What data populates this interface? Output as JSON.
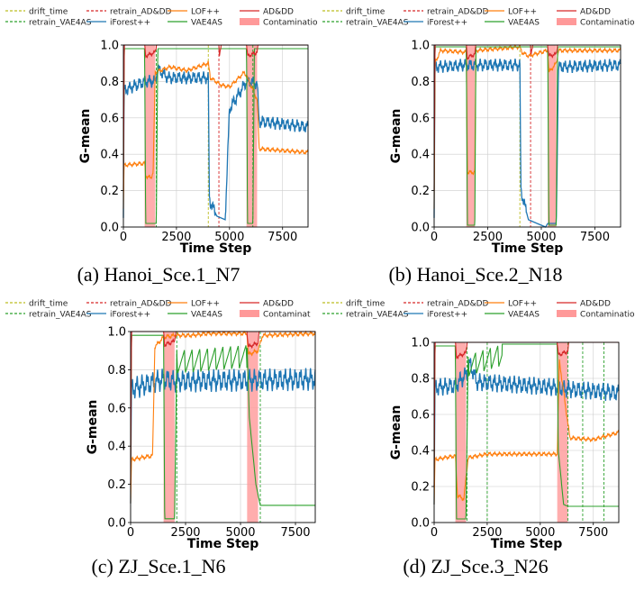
{
  "legend_entries": [
    {
      "label": "drift_time",
      "color": "#bcbd22",
      "style": "dash"
    },
    {
      "label": "retrain_VAE4AS",
      "color": "#2ca02c",
      "style": "dash"
    },
    {
      "label": "retrain_AD&DD",
      "color": "#d62728",
      "style": "dash"
    },
    {
      "label": "iForest++",
      "color": "#1f77b4",
      "style": "line"
    },
    {
      "label": "LOF++",
      "color": "#ff7f0e",
      "style": "line"
    },
    {
      "label": "VAE4AS",
      "color": "#2ca02c",
      "style": "line"
    },
    {
      "label": "AD&DD",
      "color": "#d62728",
      "style": "line"
    },
    {
      "label": "Contamination",
      "color": "#ff9999",
      "style": "patch"
    }
  ],
  "colors": {
    "ad_dd": "#d62728",
    "vae4as": "#2ca02c",
    "lof": "#ff7f0e",
    "iforest": "#1f77b4",
    "drift": "#bcbd22",
    "contamination": "#ff9999"
  },
  "chart_data": [
    {
      "type": "line",
      "caption": "(a) Hanoi_Sce.1_N7",
      "legend_contamination_label": "Contamination",
      "xlabel": "Time Step",
      "ylabel": "G-mean",
      "xlim": [
        0,
        8700
      ],
      "ylim": [
        0,
        1.0
      ],
      "xticks": [
        0,
        2500,
        5000,
        7500
      ],
      "yticks": [
        0.0,
        0.2,
        0.4,
        0.6,
        0.8,
        1.0
      ],
      "contamination": [
        [
          1000,
          1500
        ],
        [
          5800,
          6300
        ]
      ],
      "drift_time": [
        4000
      ],
      "retrain_VAE4AS": [
        1550,
        6100
      ],
      "retrain_AD&DD": [
        4500
      ],
      "series": [
        {
          "name": "AD&DD",
          "points": [
            [
              0,
              0.2
            ],
            [
              40,
              1.0
            ],
            [
              1000,
              1.0
            ],
            [
              1050,
              0.94
            ],
            [
              1500,
              0.96
            ],
            [
              1560,
              1.0
            ],
            [
              4500,
              1.0
            ],
            [
              4520,
              0.94
            ],
            [
              4600,
              1.0
            ],
            [
              5800,
              1.0
            ],
            [
              5850,
              0.94
            ],
            [
              6300,
              0.96
            ],
            [
              6350,
              1.0
            ],
            [
              8700,
              1.0
            ]
          ],
          "wavy": true
        },
        {
          "name": "VAE4AS",
          "points": [
            [
              0,
              0.2
            ],
            [
              40,
              0.98
            ],
            [
              1000,
              0.98
            ],
            [
              1050,
              0.02
            ],
            [
              1550,
              0.02
            ],
            [
              1620,
              0.98
            ],
            [
              5800,
              0.98
            ],
            [
              5850,
              0.02
            ],
            [
              6100,
              0.02
            ],
            [
              6170,
              0.98
            ],
            [
              8700,
              0.98
            ]
          ],
          "wavy": false
        },
        {
          "name": "LOF++",
          "points": [
            [
              0,
              0.1
            ],
            [
              30,
              0.34
            ],
            [
              1000,
              0.35
            ],
            [
              1050,
              0.28
            ],
            [
              1300,
              0.27
            ],
            [
              1400,
              0.3
            ],
            [
              1500,
              0.85
            ],
            [
              2200,
              0.88
            ],
            [
              3000,
              0.86
            ],
            [
              4000,
              0.9
            ],
            [
              4100,
              0.82
            ],
            [
              4600,
              0.78
            ],
            [
              5000,
              0.77
            ],
            [
              5700,
              0.85
            ],
            [
              5800,
              0.83
            ],
            [
              6300,
              0.7
            ],
            [
              6400,
              0.43
            ],
            [
              8700,
              0.41
            ]
          ],
          "wavy": true
        },
        {
          "name": "iForest++",
          "points": [
            [
              0,
              0.05
            ],
            [
              30,
              0.75
            ],
            [
              1000,
              0.8
            ],
            [
              1500,
              0.8
            ],
            [
              1600,
              0.87
            ],
            [
              2100,
              0.82
            ],
            [
              4000,
              0.82
            ],
            [
              4050,
              0.15
            ],
            [
              4400,
              0.06
            ],
            [
              4800,
              0.04
            ],
            [
              4850,
              0.2
            ],
            [
              5000,
              0.65
            ],
            [
              5800,
              0.8
            ],
            [
              6300,
              0.79
            ],
            [
              6400,
              0.58
            ],
            [
              8700,
              0.55
            ]
          ],
          "wavy": true
        }
      ]
    },
    {
      "type": "line",
      "caption": "(b) Hanoi_Sce.2_N18",
      "legend_contamination_label": "Contamination",
      "xlabel": "Time Step",
      "ylabel": "G-mean",
      "xlim": [
        0,
        8700
      ],
      "ylim": [
        0,
        1.0
      ],
      "xticks": [
        0,
        2500,
        5000,
        7500
      ],
      "yticks": [
        0.0,
        0.2,
        0.4,
        0.6,
        0.8,
        1.0
      ],
      "contamination": [
        [
          1500,
          1900
        ],
        [
          5300,
          5700
        ]
      ],
      "drift_time": [
        4000
      ],
      "retrain_VAE4AS": [],
      "retrain_AD&DD": [
        4500
      ],
      "series": [
        {
          "name": "AD&DD",
          "points": [
            [
              0,
              0.2
            ],
            [
              40,
              1.0
            ],
            [
              1500,
              1.0
            ],
            [
              1550,
              0.93
            ],
            [
              1900,
              0.95
            ],
            [
              1950,
              1.0
            ],
            [
              4500,
              1.0
            ],
            [
              4520,
              0.95
            ],
            [
              4600,
              1.0
            ],
            [
              5300,
              1.0
            ],
            [
              5350,
              0.94
            ],
            [
              5700,
              0.95
            ],
            [
              5750,
              1.0
            ],
            [
              8700,
              1.0
            ]
          ],
          "wavy": true
        },
        {
          "name": "VAE4AS",
          "points": [
            [
              0,
              0.2
            ],
            [
              40,
              0.99
            ],
            [
              1500,
              0.99
            ],
            [
              1550,
              0.01
            ],
            [
              1900,
              0.01
            ],
            [
              1950,
              0.99
            ],
            [
              5300,
              0.99
            ],
            [
              5350,
              0.01
            ],
            [
              5700,
              0.01
            ],
            [
              5760,
              0.99
            ],
            [
              8700,
              0.99
            ]
          ],
          "wavy": false
        },
        {
          "name": "LOF++",
          "points": [
            [
              0,
              0.1
            ],
            [
              40,
              0.9
            ],
            [
              300,
              0.97
            ],
            [
              1500,
              0.96
            ],
            [
              1550,
              0.3
            ],
            [
              1900,
              0.3
            ],
            [
              1950,
              0.97
            ],
            [
              4000,
              0.99
            ],
            [
              4100,
              0.96
            ],
            [
              4400,
              0.94
            ],
            [
              5300,
              0.97
            ],
            [
              5350,
              0.85
            ],
            [
              5700,
              0.9
            ],
            [
              5800,
              0.97
            ],
            [
              8700,
              0.97
            ]
          ],
          "wavy": true
        },
        {
          "name": "iForest++",
          "points": [
            [
              0,
              0.05
            ],
            [
              40,
              0.88
            ],
            [
              1500,
              0.89
            ],
            [
              1900,
              0.89
            ],
            [
              4000,
              0.89
            ],
            [
              4050,
              0.2
            ],
            [
              4400,
              0.04
            ],
            [
              5000,
              0.01
            ],
            [
              5200,
              0.0
            ],
            [
              5300,
              0.02
            ],
            [
              5700,
              0.02
            ],
            [
              5800,
              0.88
            ],
            [
              8700,
              0.89
            ]
          ],
          "wavy": true
        }
      ]
    },
    {
      "type": "line",
      "caption": "(c) ZJ_Sce.1_N6",
      "legend_contamination_label": "Contaminat",
      "xlabel": "Time Step",
      "ylabel": "G-mean",
      "xlim": [
        0,
        8400
      ],
      "ylim": [
        0,
        1.0
      ],
      "xticks": [
        0,
        2500,
        5000,
        7500
      ],
      "yticks": [
        0.0,
        0.2,
        0.4,
        0.6,
        0.8,
        1.0
      ],
      "contamination": [
        [
          1500,
          2000
        ],
        [
          5300,
          5800
        ]
      ],
      "drift_time": [],
      "retrain_VAE4AS": [
        2100,
        5900
      ],
      "retrain_AD&DD": [],
      "series": [
        {
          "name": "AD&DD",
          "points": [
            [
              0,
              0.2
            ],
            [
              40,
              1.0
            ],
            [
              1500,
              1.0
            ],
            [
              1550,
              0.93
            ],
            [
              2000,
              0.95
            ],
            [
              2050,
              1.0
            ],
            [
              5300,
              1.0
            ],
            [
              5350,
              0.92
            ],
            [
              5800,
              0.94
            ],
            [
              5850,
              1.0
            ],
            [
              8400,
              1.0
            ]
          ],
          "wavy": true
        },
        {
          "name": "VAE4AS",
          "points": [
            [
              0,
              0.2
            ],
            [
              40,
              0.98
            ],
            [
              1500,
              0.98
            ],
            [
              1550,
              0.02
            ],
            [
              2000,
              0.02
            ],
            [
              2100,
              0.9
            ],
            [
              5300,
              0.93
            ],
            [
              5400,
              0.55
            ],
            [
              5700,
              0.2
            ],
            [
              5900,
              0.09
            ],
            [
              8400,
              0.09
            ]
          ],
          "wavy": false,
          "sawtooth": [
            [
              2100,
              5300
            ]
          ]
        },
        {
          "name": "LOF++",
          "points": [
            [
              0,
              0.1
            ],
            [
              40,
              0.33
            ],
            [
              1000,
              0.35
            ],
            [
              1100,
              0.92
            ],
            [
              1500,
              0.97
            ],
            [
              2000,
              0.98
            ],
            [
              2800,
              0.98
            ],
            [
              3500,
              0.99
            ],
            [
              5300,
              0.99
            ],
            [
              5350,
              0.88
            ],
            [
              5800,
              0.9
            ],
            [
              6000,
              0.98
            ],
            [
              8400,
              0.99
            ]
          ],
          "wavy": true
        },
        {
          "name": "iForest++",
          "points": [
            [
              0,
              0.1
            ],
            [
              40,
              0.7
            ],
            [
              1500,
              0.75
            ],
            [
              2000,
              0.74
            ],
            [
              8400,
              0.75
            ]
          ],
          "wavy": true,
          "amplitude": 0.06
        }
      ]
    },
    {
      "type": "line",
      "caption": "(d) ZJ_Sce.3_N26",
      "legend_contamination_label": "Contamination",
      "xlabel": "Time Step",
      "ylabel": "G-mean",
      "xlim": [
        0,
        8700
      ],
      "ylim": [
        0,
        1.0
      ],
      "xticks": [
        0,
        2500,
        5000,
        7500
      ],
      "yticks": [
        0.0,
        0.2,
        0.4,
        0.6,
        0.8,
        1.0
      ],
      "contamination": [
        [
          1000,
          1500
        ],
        [
          5800,
          6300
        ]
      ],
      "drift_time": [],
      "retrain_VAE4AS": [
        1550,
        2500,
        6300,
        7000,
        8000
      ],
      "retrain_AD&DD": [],
      "series": [
        {
          "name": "AD&DD",
          "points": [
            [
              0,
              0.2
            ],
            [
              40,
              1.0
            ],
            [
              1000,
              1.0
            ],
            [
              1050,
              0.92
            ],
            [
              1500,
              0.94
            ],
            [
              1550,
              1.0
            ],
            [
              5800,
              1.0
            ],
            [
              5850,
              0.93
            ],
            [
              6300,
              0.95
            ],
            [
              6350,
              1.0
            ],
            [
              8700,
              1.0
            ]
          ],
          "wavy": true
        },
        {
          "name": "VAE4AS",
          "points": [
            [
              0,
              0.2
            ],
            [
              40,
              0.98
            ],
            [
              1000,
              0.98
            ],
            [
              1050,
              0.02
            ],
            [
              1500,
              0.02
            ],
            [
              1600,
              0.93
            ],
            [
              3200,
              0.99
            ],
            [
              5800,
              0.99
            ],
            [
              5850,
              0.4
            ],
            [
              6100,
              0.1
            ],
            [
              6300,
              0.09
            ],
            [
              8700,
              0.09
            ]
          ],
          "wavy": false,
          "sawtooth": [
            [
              1600,
              3200
            ]
          ]
        },
        {
          "name": "LOF++",
          "points": [
            [
              0,
              0.1
            ],
            [
              40,
              0.35
            ],
            [
              1000,
              0.37
            ],
            [
              1100,
              0.15
            ],
            [
              1400,
              0.13
            ],
            [
              1600,
              0.36
            ],
            [
              2500,
              0.38
            ],
            [
              5800,
              0.38
            ],
            [
              5900,
              0.9
            ],
            [
              6300,
              0.55
            ],
            [
              6400,
              0.47
            ],
            [
              7500,
              0.46
            ],
            [
              8700,
              0.5
            ]
          ],
          "wavy": true
        },
        {
          "name": "iForest++",
          "points": [
            [
              0,
              0.1
            ],
            [
              40,
              0.75
            ],
            [
              1000,
              0.76
            ],
            [
              1500,
              0.82
            ],
            [
              1700,
              0.88
            ],
            [
              2000,
              0.78
            ],
            [
              5800,
              0.75
            ],
            [
              6300,
              0.74
            ],
            [
              8700,
              0.72
            ]
          ],
          "wavy": true,
          "amplitude": 0.05
        }
      ]
    }
  ]
}
